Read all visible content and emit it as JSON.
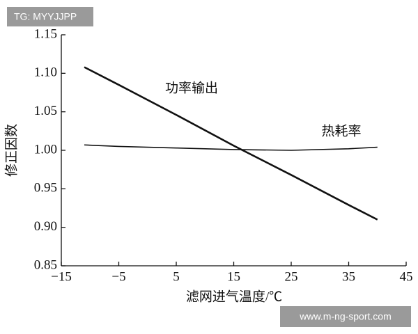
{
  "chart_data": {
    "type": "line",
    "x_label": "滤网进气温度/℃",
    "y_label": "修正因数",
    "x": [
      -11,
      -5,
      5,
      15,
      25,
      35,
      40
    ],
    "series": [
      {
        "name": "功率输出",
        "color": "#111111",
        "width": 2.6,
        "values": [
          1.108,
          1.085,
          1.046,
          1.006,
          0.968,
          0.929,
          0.91
        ]
      },
      {
        "name": "热耗率",
        "color": "#111111",
        "width": 1.6,
        "values": [
          1.007,
          1.005,
          1.003,
          1.001,
          1.0,
          1.002,
          1.004
        ]
      }
    ],
    "xlim": [
      -15,
      45
    ],
    "xticks": [
      {
        "value": -15,
        "label": "−15"
      },
      {
        "value": -5,
        "label": "−5"
      },
      5,
      15,
      25,
      35,
      45
    ],
    "ylim": [
      0.85,
      1.15
    ],
    "yticks": [
      0.85,
      {
        "value": 0.9,
        "label": "0.90"
      },
      0.95,
      {
        "value": 1.0,
        "label": "1.00"
      },
      1.05,
      {
        "value": 1.1,
        "label": "1.10"
      },
      1.15
    ],
    "grid": false
  },
  "watermarks": {
    "top": "TG: MYYJJPP",
    "bottom": "www.m-ng-sport.com"
  }
}
